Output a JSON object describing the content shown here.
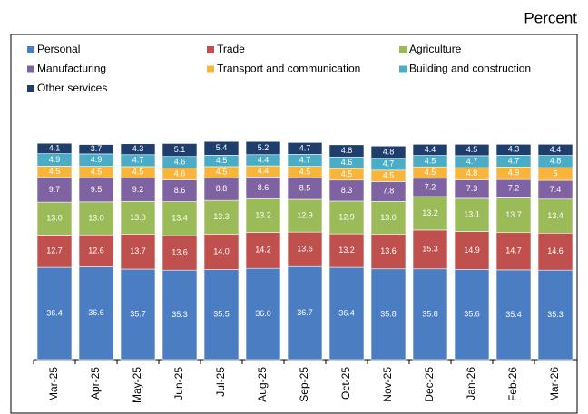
{
  "chart_data": {
    "type": "stacked_bar",
    "unit_label": "Percent",
    "categories": [
      "Mar-25",
      "Apr-25",
      "May-25",
      "Jun-25",
      "Jul-25",
      "Aug-25",
      "Sep-25",
      "Oct-25",
      "Nov-25",
      "Dec-25",
      "Jan-26",
      "Feb-26",
      "Mar-26"
    ],
    "series": [
      {
        "name": "Personal",
        "color": "#4a7dc1",
        "values": [
          36.4,
          36.6,
          35.7,
          35.3,
          35.5,
          36.0,
          36.7,
          36.4,
          35.8,
          35.8,
          35.6,
          35.4,
          35.3
        ],
        "value_labels": [
          "36.4",
          "36.6",
          "35.7",
          "35.3",
          "35.5",
          "36.0",
          "36.7",
          "36.4",
          "35.8",
          "35.8",
          "35.6",
          "35.4",
          "35.3"
        ]
      },
      {
        "name": "Trade",
        "color": "#c0504d",
        "values": [
          12.7,
          12.6,
          13.7,
          13.6,
          14.0,
          14.2,
          13.6,
          13.2,
          13.6,
          15.3,
          14.9,
          14.7,
          14.6
        ],
        "value_labels": [
          "12.7",
          "12.6",
          "13.7",
          "13.6",
          "14.0",
          "14.2",
          "13.6",
          "13.2",
          "13.6",
          "15.3",
          "14.9",
          "14.7",
          "14.6"
        ]
      },
      {
        "name": "Agriculture",
        "color": "#9bbb59",
        "values": [
          13.0,
          13.0,
          13.0,
          13.4,
          13.3,
          13.2,
          12.9,
          12.9,
          13.0,
          13.2,
          13.1,
          13.7,
          13.4
        ],
        "value_labels": [
          "13.0",
          "13.0",
          "13.0",
          "13.4",
          "13.3",
          "13.2",
          "12.9",
          "12.9",
          "13.0",
          "13.2",
          "13.1",
          "13.7",
          "13.4"
        ]
      },
      {
        "name": "Manufacturing",
        "color": "#7f62a1",
        "values": [
          9.7,
          9.5,
          9.2,
          8.6,
          8.8,
          8.6,
          8.5,
          8.3,
          7.8,
          7.2,
          7.3,
          7.2,
          7.4
        ]
      },
      {
        "name": "Transport and communication",
        "color": "#f7b53b",
        "values": [
          4.5,
          4.5,
          4.5,
          4.6,
          4.5,
          4.4,
          4.5,
          4.5,
          4.5,
          4.5,
          4.8,
          4.9,
          5.0
        ]
      },
      {
        "name": "Building and construction",
        "color": "#4bacc6",
        "values": [
          4.9,
          4.9,
          4.7,
          4.6,
          4.5,
          4.4,
          4.7,
          4.6,
          4.7,
          4.5,
          4.7,
          4.7,
          4.8
        ]
      },
      {
        "name": "Other services",
        "color": "#1f3e6d",
        "values": [
          4.1,
          3.7,
          4.3,
          5.1,
          5.4,
          5.2,
          4.7,
          4.8,
          4.8,
          4.4,
          4.5,
          4.3,
          4.4
        ]
      }
    ]
  }
}
